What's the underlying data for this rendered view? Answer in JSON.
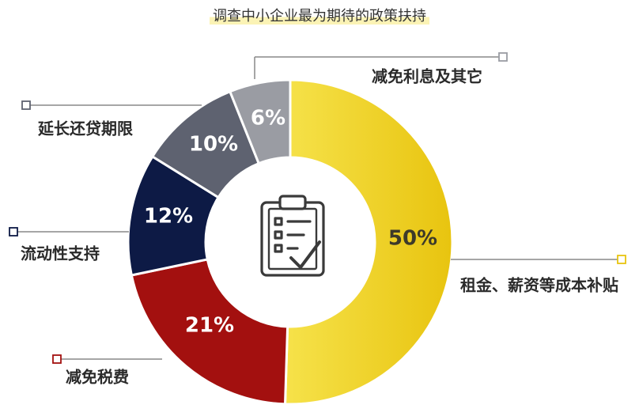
{
  "title": "调查中小企业最为期待的政策扶持",
  "icon": "clipboard-checklist-icon",
  "chart_data": {
    "type": "pie",
    "donut": true,
    "title": "调查中小企业最为期待的政策扶持",
    "slices": [
      {
        "label": "租金、薪资等成本补贴",
        "value": 50,
        "display": "50%",
        "color": "#f3d623"
      },
      {
        "label": "减免税费",
        "value": 21,
        "display": "21%",
        "color": "#a3100f"
      },
      {
        "label": "流动性支持",
        "value": 12,
        "display": "12%",
        "color": "#0d1a45"
      },
      {
        "label": "延长还贷期限",
        "value": 10,
        "display": "10%",
        "color": "#5e6270"
      },
      {
        "label": "减免利息及其它",
        "value": 6,
        "display": "6%",
        "color": "#9a9ca3"
      }
    ]
  }
}
